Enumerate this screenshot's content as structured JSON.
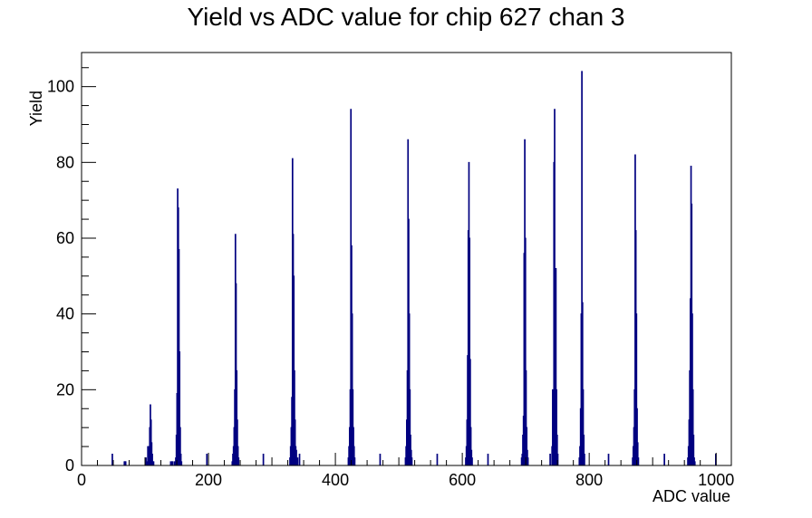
{
  "chart_data": {
    "type": "histogram",
    "title": "Yield vs ADC value for chip 627 chan 3",
    "xlabel": "ADC value",
    "ylabel": "Yield",
    "xlim": [
      0,
      1024
    ],
    "ylim": [
      0,
      109
    ],
    "x_ticks": [
      0,
      200,
      400,
      600,
      800,
      1000
    ],
    "y_ticks": [
      0,
      20,
      40,
      60,
      80,
      100
    ],
    "grid": false,
    "legend": "none",
    "line_color": "#000080",
    "bin_width": 1,
    "bins": [
      {
        "x": 48,
        "y": 3
      },
      {
        "x": 67,
        "y": 1
      },
      {
        "x": 68,
        "y": 1
      },
      {
        "x": 69,
        "y": 1
      },
      {
        "x": 101,
        "y": 2
      },
      {
        "x": 103,
        "y": 1
      },
      {
        "x": 104,
        "y": 5
      },
      {
        "x": 106,
        "y": 5
      },
      {
        "x": 107,
        "y": 10
      },
      {
        "x": 108,
        "y": 16
      },
      {
        "x": 109,
        "y": 12
      },
      {
        "x": 110,
        "y": 6
      },
      {
        "x": 111,
        "y": 3
      },
      {
        "x": 112,
        "y": 1
      },
      {
        "x": 113,
        "y": 1
      },
      {
        "x": 140,
        "y": 1
      },
      {
        "x": 142,
        "y": 1
      },
      {
        "x": 143,
        "y": 1
      },
      {
        "x": 146,
        "y": 1
      },
      {
        "x": 148,
        "y": 2
      },
      {
        "x": 149,
        "y": 8
      },
      {
        "x": 150,
        "y": 19
      },
      {
        "x": 151,
        "y": 73
      },
      {
        "x": 152,
        "y": 68
      },
      {
        "x": 153,
        "y": 57
      },
      {
        "x": 154,
        "y": 30
      },
      {
        "x": 155,
        "y": 10
      },
      {
        "x": 156,
        "y": 3
      },
      {
        "x": 157,
        "y": 1
      },
      {
        "x": 197,
        "y": 3
      },
      {
        "x": 237,
        "y": 1
      },
      {
        "x": 238,
        "y": 3
      },
      {
        "x": 239,
        "y": 5
      },
      {
        "x": 240,
        "y": 10
      },
      {
        "x": 241,
        "y": 20
      },
      {
        "x": 242,
        "y": 61
      },
      {
        "x": 243,
        "y": 48
      },
      {
        "x": 244,
        "y": 25
      },
      {
        "x": 245,
        "y": 12
      },
      {
        "x": 246,
        "y": 5
      },
      {
        "x": 247,
        "y": 2
      },
      {
        "x": 286,
        "y": 3
      },
      {
        "x": 328,
        "y": 2
      },
      {
        "x": 329,
        "y": 5
      },
      {
        "x": 330,
        "y": 10
      },
      {
        "x": 331,
        "y": 18
      },
      {
        "x": 332,
        "y": 81
      },
      {
        "x": 333,
        "y": 61
      },
      {
        "x": 334,
        "y": 50
      },
      {
        "x": 335,
        "y": 25
      },
      {
        "x": 336,
        "y": 12
      },
      {
        "x": 337,
        "y": 5
      },
      {
        "x": 338,
        "y": 4
      },
      {
        "x": 340,
        "y": 2
      },
      {
        "x": 343,
        "y": 3
      },
      {
        "x": 420,
        "y": 2
      },
      {
        "x": 421,
        "y": 5
      },
      {
        "x": 422,
        "y": 10
      },
      {
        "x": 423,
        "y": 20
      },
      {
        "x": 424,
        "y": 94
      },
      {
        "x": 425,
        "y": 58
      },
      {
        "x": 426,
        "y": 40
      },
      {
        "x": 427,
        "y": 20
      },
      {
        "x": 428,
        "y": 10
      },
      {
        "x": 429,
        "y": 5
      },
      {
        "x": 430,
        "y": 2
      },
      {
        "x": 470,
        "y": 3
      },
      {
        "x": 510,
        "y": 2
      },
      {
        "x": 511,
        "y": 5
      },
      {
        "x": 512,
        "y": 12
      },
      {
        "x": 513,
        "y": 25
      },
      {
        "x": 514,
        "y": 86
      },
      {
        "x": 515,
        "y": 65
      },
      {
        "x": 516,
        "y": 40
      },
      {
        "x": 517,
        "y": 20
      },
      {
        "x": 518,
        "y": 8
      },
      {
        "x": 519,
        "y": 4
      },
      {
        "x": 520,
        "y": 2
      },
      {
        "x": 560,
        "y": 3
      },
      {
        "x": 605,
        "y": 2
      },
      {
        "x": 606,
        "y": 5
      },
      {
        "x": 607,
        "y": 12
      },
      {
        "x": 608,
        "y": 29
      },
      {
        "x": 609,
        "y": 62
      },
      {
        "x": 610,
        "y": 80
      },
      {
        "x": 611,
        "y": 60
      },
      {
        "x": 612,
        "y": 28
      },
      {
        "x": 613,
        "y": 10
      },
      {
        "x": 614,
        "y": 4
      },
      {
        "x": 615,
        "y": 2
      },
      {
        "x": 640,
        "y": 3
      },
      {
        "x": 693,
        "y": 2
      },
      {
        "x": 694,
        "y": 3
      },
      {
        "x": 695,
        "y": 8
      },
      {
        "x": 696,
        "y": 13
      },
      {
        "x": 697,
        "y": 56
      },
      {
        "x": 698,
        "y": 86
      },
      {
        "x": 699,
        "y": 60
      },
      {
        "x": 700,
        "y": 25
      },
      {
        "x": 701,
        "y": 10
      },
      {
        "x": 702,
        "y": 4
      },
      {
        "x": 703,
        "y": 2
      },
      {
        "x": 738,
        "y": 3
      },
      {
        "x": 741,
        "y": 5
      },
      {
        "x": 742,
        "y": 20
      },
      {
        "x": 743,
        "y": 19
      },
      {
        "x": 744,
        "y": 80
      },
      {
        "x": 745,
        "y": 94
      },
      {
        "x": 746,
        "y": 52
      },
      {
        "x": 747,
        "y": 52
      },
      {
        "x": 748,
        "y": 20
      },
      {
        "x": 749,
        "y": 8
      },
      {
        "x": 750,
        "y": 3
      },
      {
        "x": 784,
        "y": 2
      },
      {
        "x": 785,
        "y": 5
      },
      {
        "x": 786,
        "y": 15
      },
      {
        "x": 787,
        "y": 40
      },
      {
        "x": 788,
        "y": 104
      },
      {
        "x": 789,
        "y": 43
      },
      {
        "x": 790,
        "y": 20
      },
      {
        "x": 791,
        "y": 8
      },
      {
        "x": 792,
        "y": 3
      },
      {
        "x": 830,
        "y": 3
      },
      {
        "x": 868,
        "y": 2
      },
      {
        "x": 869,
        "y": 5
      },
      {
        "x": 870,
        "y": 10
      },
      {
        "x": 871,
        "y": 20
      },
      {
        "x": 872,
        "y": 82
      },
      {
        "x": 873,
        "y": 62
      },
      {
        "x": 874,
        "y": 40
      },
      {
        "x": 875,
        "y": 15
      },
      {
        "x": 876,
        "y": 6
      },
      {
        "x": 877,
        "y": 2
      },
      {
        "x": 918,
        "y": 3
      },
      {
        "x": 955,
        "y": 2
      },
      {
        "x": 956,
        "y": 5
      },
      {
        "x": 957,
        "y": 12
      },
      {
        "x": 958,
        "y": 25
      },
      {
        "x": 959,
        "y": 44
      },
      {
        "x": 960,
        "y": 79
      },
      {
        "x": 961,
        "y": 69
      },
      {
        "x": 962,
        "y": 40
      },
      {
        "x": 963,
        "y": 20
      },
      {
        "x": 964,
        "y": 8
      },
      {
        "x": 965,
        "y": 2
      },
      {
        "x": 966,
        "y": 1
      },
      {
        "x": 999,
        "y": 3
      }
    ]
  }
}
